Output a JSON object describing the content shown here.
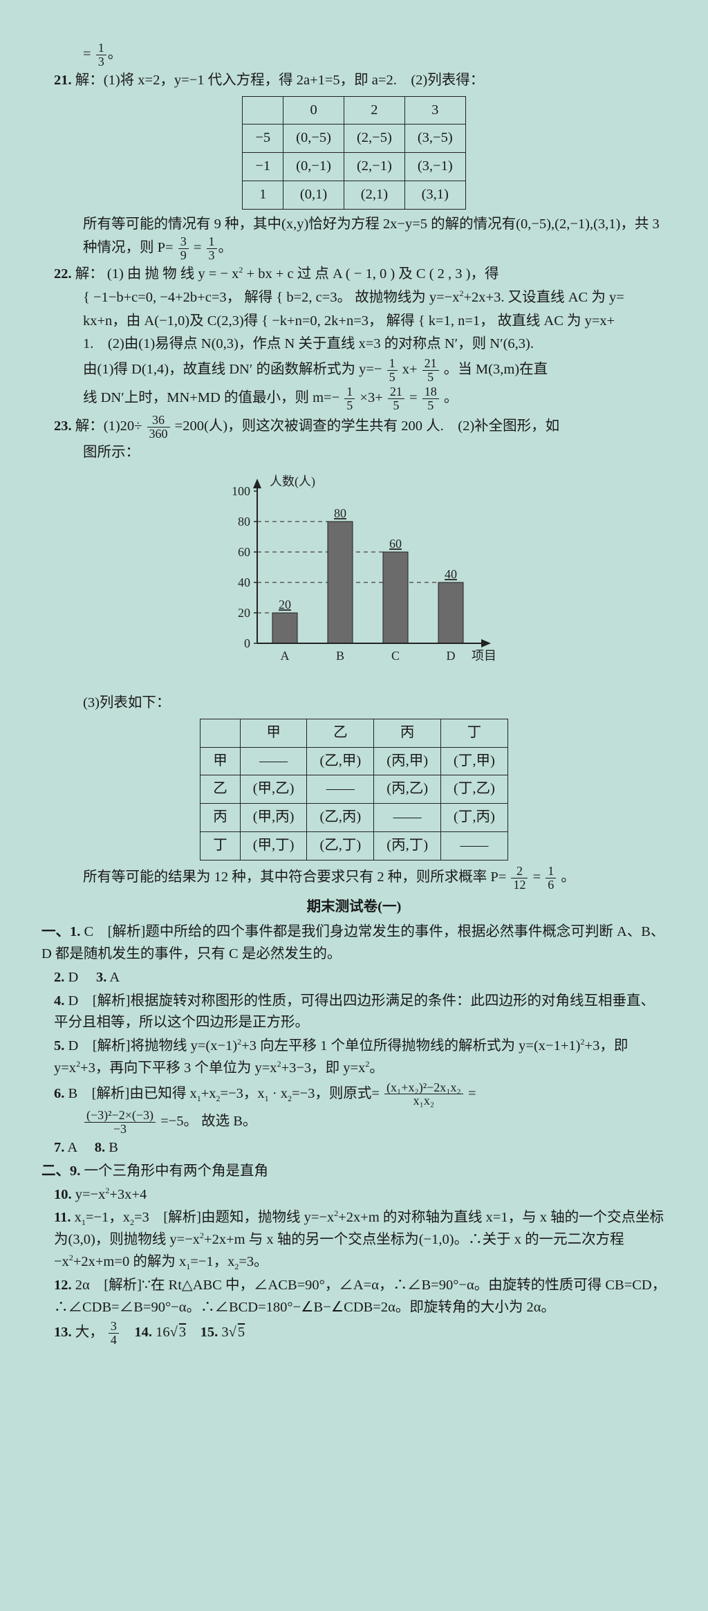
{
  "top_fragment": {
    "eq_lhs": "=",
    "num": "1",
    "den": "3",
    "tail": "。"
  },
  "q21": {
    "label": "21.",
    "prefix": "解：(1)将 ",
    "body1": "x=2，y=−1 代入方程，得 2a+1=5，即 a=2.　(2)列表得：",
    "table": {
      "header": [
        "",
        "0",
        "2",
        "3"
      ],
      "rows": [
        [
          "−5",
          "(0,−5)",
          "(2,−5)",
          "(3,−5)"
        ],
        [
          "−1",
          "(0,−1)",
          "(2,−1)",
          "(3,−1)"
        ],
        [
          "1",
          "(0,1)",
          "(2,1)",
          "(3,1)"
        ]
      ],
      "border_color": "#222"
    },
    "after1": "所有等可能的情况有 9 种，其中(x,y)恰好为方程 2x−y=5 的解的情况有(0,−5),(2,−1),(3,1)，共 3 种情况，则 P=",
    "frac1": {
      "num": "3",
      "den": "9"
    },
    "mid1": "=",
    "frac2": {
      "num": "1",
      "den": "3"
    },
    "tail1": "。"
  },
  "q22": {
    "label": "22.",
    "prefix": "解：",
    "p1_a": "(1) 由 抛 物 线  y = − x",
    "p1_sq1": "2",
    "p1_b": " + bx + c  过 点  A ( − 1, 0 )  及  C ( 2 , 3 )，得",
    "p2_a": "{ −1−b+c=0, −4+2b+c=3， 解得 { b=2, c=3。 故抛物线为 y=−x",
    "p2_sq": "2",
    "p2_b": "+2x+3. 又设直线 AC 为 y=",
    "p3": "kx+n，由 A(−1,0)及 C(2,3)得 { −k+n=0, 2k+n=3， 解得 { k=1, n=1， 故直线 AC 为 y=x+",
    "p4_a": "1.　(2)由(1)易得点 N(0,3)，作点 N 关于直线 x=3 的对称点 N′，则 N′(6,3).",
    "p5_a": "由(1)得 D(1,4)，故直线 DN′ 的函数解析式为 y=−",
    "frac_a": {
      "num": "1",
      "den": "5"
    },
    "p5_b": " x+",
    "frac_b": {
      "num": "21",
      "den": "5"
    },
    "p5_c": "。当 M(3,m)在直",
    "p6_a": "线 DN′上时，MN+MD 的值最小，则 m=−",
    "frac_c": {
      "num": "1",
      "den": "5"
    },
    "p6_b": "×3+",
    "frac_d": {
      "num": "21",
      "den": "5"
    },
    "p6_c": "=",
    "frac_e": {
      "num": "18",
      "den": "5"
    },
    "p6_d": "。"
  },
  "q23": {
    "label": "23.",
    "prefix": "解：(1)20÷",
    "frac": {
      "num": "36",
      "den": "360"
    },
    "body1": "=200(人)，则这次被调查的学生共有 200 人.　(2)补全图形，如",
    "body1b": "图所示：",
    "chart": {
      "type": "bar",
      "y_label": "人数(人)",
      "x_label": "项目",
      "categories": [
        "A",
        "B",
        "C",
        "D"
      ],
      "values": [
        20,
        80,
        60,
        40
      ],
      "y_ticks": [
        0,
        20,
        40,
        60,
        80,
        100
      ],
      "ylim": [
        0,
        100
      ],
      "bar_color": "#6b6b6b",
      "axis_color": "#222222",
      "grid_color": "#5a5a5a",
      "bar_width": 0.45,
      "font_size": 18,
      "background": "#c0dfd9"
    },
    "body2": "(3)列表如下：",
    "table2": {
      "header": [
        "",
        "甲",
        "乙",
        "丙",
        "丁"
      ],
      "rows": [
        [
          "甲",
          "——",
          "(乙,甲)",
          "(丙,甲)",
          "(丁,甲)"
        ],
        [
          "乙",
          "(甲,乙)",
          "——",
          "(丙,乙)",
          "(丁,乙)"
        ],
        [
          "丙",
          "(甲,丙)",
          "(乙,丙)",
          "——",
          "(丁,丙)"
        ],
        [
          "丁",
          "(甲,丁)",
          "(乙,丁)",
          "(丙,丁)",
          "——"
        ]
      ],
      "border_color": "#222"
    },
    "after2_a": "所有等可能的结果为 12 种，其中符合要求只有 2 种，则所求概率 P=",
    "fracP1": {
      "num": "2",
      "den": "12"
    },
    "after2_mid": "=",
    "fracP2": {
      "num": "1",
      "den": "6"
    },
    "after2_tail": "。"
  },
  "section": {
    "title": "期末测试卷(一)"
  },
  "sec1": {
    "label": "一、1.",
    "a1": "C　[解析]题中所给的四个事件都是我们身边常发生的事件，根据必然事件概念可判断 A、B、D 都是随机发生的事件，只有 C 是必然发生的。",
    "a2_lbl": "2.",
    "a2": "D　",
    "a3_lbl": "3.",
    "a3": "A",
    "a4_lbl": "4.",
    "a4": "D　[解析]根据旋转对称图形的性质，可得出四边形满足的条件：此四边形的对角线互相垂直、平分且相等，所以这个四边形是正方形。",
    "a5_lbl": "5.",
    "a5_a": "D　[解析]将抛物线 y=(x−1)",
    "a5_sq1": "2",
    "a5_b": "+3 向左平移 1 个单位所得抛物线的解析式为 y=(x−1+1)",
    "a5_sq2": "2",
    "a5_c": "+3，即 y=x",
    "a5_sq3": "2",
    "a5_d": "+3，再向下平移 3 个单位为 y=x",
    "a5_sq4": "2",
    "a5_e": "+3−3，即 y=x",
    "a5_sq5": "2",
    "a5_f": "。",
    "a6_lbl": "6.",
    "a6_a": "B　[解析]由已知得 x",
    "a6_s1": "1",
    "a6_b": "+x",
    "a6_s2": "2",
    "a6_c": "=−3，x",
    "a6_s3": "1",
    "a6_d": " · x",
    "a6_s4": "2",
    "a6_e": "=−3，则原式=",
    "a6_frac1": {
      "num": "(x₁+x₂)²−2x₁x₂",
      "den": "x₁x₂"
    },
    "a6_f": "=",
    "a6_frac2": {
      "num": "(−3)²−2×(−3)",
      "den": "−3"
    },
    "a6_g": "=−5。 故选 B。",
    "a7_lbl": "7.",
    "a7": "A　",
    "a8_lbl": "8.",
    "a8": "B"
  },
  "sec2": {
    "label": "二、9.",
    "a9": "一个三角形中有两个角是直角",
    "a10_lbl": "10.",
    "a10_a": "y=−x",
    "a10_sq": "2",
    "a10_b": "+3x+4",
    "a11_lbl": "11.",
    "a11_a": "x",
    "a11_s1": "1",
    "a11_b": "=−1，x",
    "a11_s2": "2",
    "a11_c": "=3　[解析]由题知，抛物线 y=−x",
    "a11_sq1": "2",
    "a11_d": "+2x+m 的对称轴为直线 x=1，与 x 轴的一个交点坐标为(3,0)，则抛物线 y=−x",
    "a11_sq2": "2",
    "a11_e": "+2x+m 与 x 轴的另一个交点坐标为(−1,0)。∴关于 x 的一元二次方程 −x",
    "a11_sq3": "2",
    "a11_f": "+2x+m=0 的解为 x",
    "a11_s3": "1",
    "a11_g": "=−1，x",
    "a11_s4": "2",
    "a11_h": "=3。",
    "a12_lbl": "12.",
    "a12": "2α　[解析]∵在 Rt△ABC 中，∠ACB=90°，∠A=α，∴∠B=90°−α。由旋转的性质可得 CB=CD，∴∠CDB=∠B=90°−α。∴∠BCD=180°−∠B−∠CDB=2α。即旋转角的大小为 2α。",
    "a13_lbl": "13.",
    "a13_a": "大，",
    "a13_frac": {
      "num": "3",
      "den": "4"
    },
    "a14_lbl": "14.",
    "a14_a": "16",
    "a14_surd": "3",
    "a15_lbl": "15.",
    "a15_a": "3",
    "a15_surd": "5"
  }
}
